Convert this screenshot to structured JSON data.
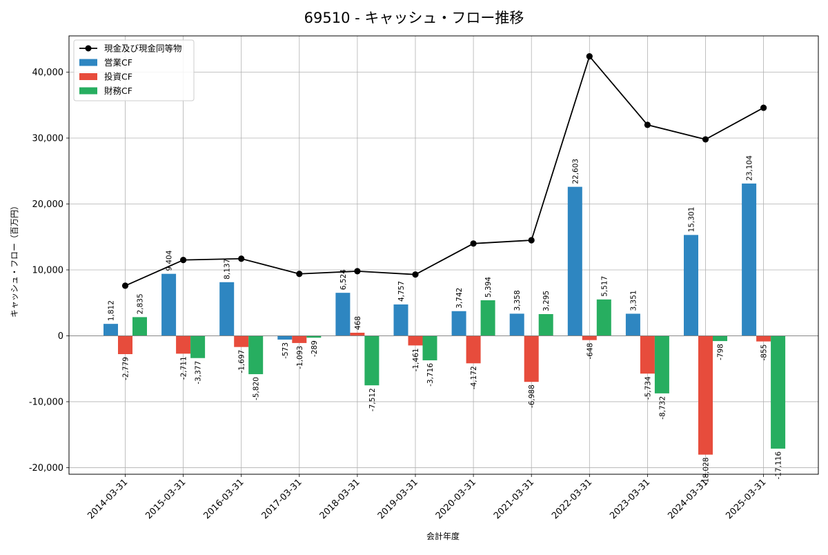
{
  "chart_data": {
    "type": "bar",
    "title": "69510 - キャッシュ・フロー推移",
    "xlabel": "会計年度",
    "ylabel": "キャッシュ・フロー（百万円）",
    "ylim": [
      -21000,
      45500
    ],
    "yticks": [
      -20000,
      -10000,
      0,
      10000,
      20000,
      30000,
      40000
    ],
    "ytick_labels": [
      "-20,000",
      "-10,000",
      "0",
      "10,000",
      "20,000",
      "30,000",
      "40,000"
    ],
    "grid": true,
    "legend_position": "top-left",
    "categories": [
      "2014-03-31",
      "2015-03-31",
      "2016-03-31",
      "2017-03-31",
      "2018-03-31",
      "2019-03-31",
      "2020-03-31",
      "2021-03-31",
      "2022-03-31",
      "2023-03-31",
      "2024-03-31",
      "2025-03-31"
    ],
    "series": [
      {
        "name": "営業CF",
        "kind": "bar",
        "color": "#2e86c1",
        "values": [
          1812,
          9404,
          8137,
          -573,
          6524,
          4757,
          3742,
          3358,
          22603,
          3351,
          15301,
          23104
        ],
        "labels": [
          "1,812",
          "9,404",
          "8,137",
          "-573",
          "6,524",
          "4,757",
          "3,742",
          "3,358",
          "22,603",
          "3,351",
          "15,301",
          "23,104"
        ]
      },
      {
        "name": "投資CF",
        "kind": "bar",
        "color": "#e74c3c",
        "values": [
          -2779,
          -2711,
          -1697,
          -1093,
          468,
          -1461,
          -4172,
          -6988,
          -648,
          -5734,
          -18028,
          -855
        ],
        "labels": [
          "-2,779",
          "-2,711",
          "-1,697",
          "-1,093",
          "468",
          "-1,461",
          "-4,172",
          "-6,988",
          "-648",
          "-5,734",
          "-18,028",
          "-855"
        ]
      },
      {
        "name": "財務CF",
        "kind": "bar",
        "color": "#27ae60",
        "values": [
          2835,
          -3377,
          -5820,
          -289,
          -7512,
          -3716,
          5394,
          3295,
          5517,
          -8732,
          -798,
          -17116
        ],
        "labels": [
          "2,835",
          "-3,377",
          "-5,820",
          "-289",
          "-7,512",
          "-3,716",
          "5,394",
          "3,295",
          "5,517",
          "-8,732",
          "-798",
          "-17,116"
        ]
      },
      {
        "name": "現金及び現金同等物",
        "kind": "line",
        "color": "#000000",
        "values": [
          7600,
          11500,
          11700,
          9400,
          9800,
          9300,
          14000,
          14500,
          42400,
          32000,
          29800,
          34600
        ]
      }
    ]
  }
}
